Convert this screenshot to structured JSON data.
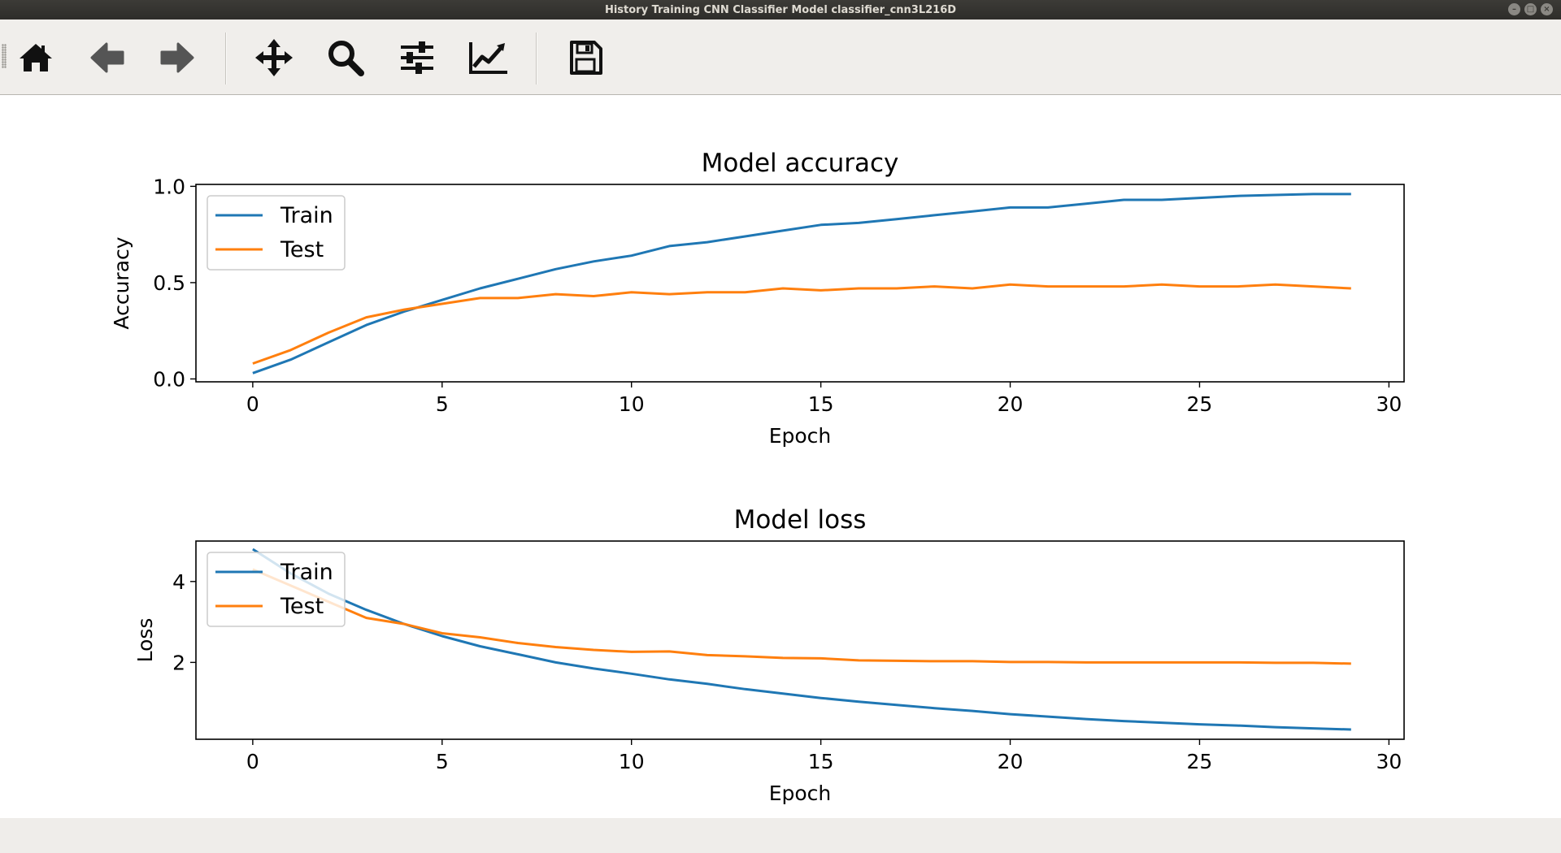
{
  "window": {
    "title": "History Training CNN Classifier Model classifier_cnn3L216D"
  },
  "toolbar": {
    "buttons": [
      {
        "name": "home-icon"
      },
      {
        "name": "back-arrow-icon"
      },
      {
        "name": "forward-arrow-icon"
      },
      {
        "name": "pan-move-icon"
      },
      {
        "name": "zoom-magnifier-icon"
      },
      {
        "name": "configure-subplots-icon"
      },
      {
        "name": "edit-axis-line-icon"
      },
      {
        "name": "save-disk-icon"
      }
    ]
  },
  "colors": {
    "train": "#1f77b4",
    "test": "#ff7f0e"
  },
  "chart_data": [
    {
      "type": "line",
      "title": "Model accuracy",
      "xlabel": "Epoch",
      "ylabel": "Accuracy",
      "xlim": [
        -1.5,
        30.4
      ],
      "ylim": [
        -0.015,
        1.01
      ],
      "xticks": [
        "0",
        "5",
        "10",
        "15",
        "20",
        "25",
        "30"
      ],
      "yticks": [
        "0.0",
        "0.5",
        "1.0"
      ],
      "legend": {
        "position": "upper-left",
        "entries": [
          "Train",
          "Test"
        ]
      },
      "grid": false,
      "x": [
        0,
        1,
        2,
        3,
        4,
        5,
        6,
        7,
        8,
        9,
        10,
        11,
        12,
        13,
        14,
        15,
        16,
        17,
        18,
        19,
        20,
        21,
        22,
        23,
        24,
        25,
        26,
        27,
        28,
        29
      ],
      "series": [
        {
          "name": "Train",
          "values": [
            0.03,
            0.1,
            0.19,
            0.28,
            0.35,
            0.41,
            0.47,
            0.52,
            0.57,
            0.61,
            0.64,
            0.69,
            0.71,
            0.74,
            0.77,
            0.8,
            0.81,
            0.83,
            0.85,
            0.87,
            0.89,
            0.89,
            0.91,
            0.93,
            0.93,
            0.94,
            0.95,
            0.955,
            0.96,
            0.96
          ]
        },
        {
          "name": "Test",
          "values": [
            0.08,
            0.15,
            0.24,
            0.32,
            0.36,
            0.39,
            0.42,
            0.42,
            0.44,
            0.43,
            0.45,
            0.44,
            0.45,
            0.45,
            0.47,
            0.46,
            0.47,
            0.47,
            0.48,
            0.47,
            0.49,
            0.48,
            0.48,
            0.48,
            0.49,
            0.48,
            0.48,
            0.49,
            0.48,
            0.47
          ]
        }
      ]
    },
    {
      "type": "line",
      "title": "Model loss",
      "xlabel": "Epoch",
      "ylabel": "Loss",
      "xlim": [
        -1.5,
        30.4
      ],
      "ylim": [
        0.1,
        5.0
      ],
      "xticks": [
        "0",
        "5",
        "10",
        "15",
        "20",
        "25",
        "30"
      ],
      "yticks": [
        "2",
        "4"
      ],
      "legend": {
        "position": "upper-left",
        "entries": [
          "Train",
          "Test"
        ]
      },
      "grid": false,
      "x": [
        0,
        1,
        2,
        3,
        4,
        5,
        6,
        7,
        8,
        9,
        10,
        11,
        12,
        13,
        14,
        15,
        16,
        17,
        18,
        19,
        20,
        21,
        22,
        23,
        24,
        25,
        26,
        27,
        28,
        29
      ],
      "series": [
        {
          "name": "Train",
          "values": [
            4.8,
            4.2,
            3.7,
            3.3,
            2.95,
            2.65,
            2.4,
            2.2,
            2.0,
            1.85,
            1.72,
            1.58,
            1.47,
            1.34,
            1.23,
            1.12,
            1.03,
            0.95,
            0.87,
            0.8,
            0.72,
            0.66,
            0.6,
            0.55,
            0.51,
            0.47,
            0.44,
            0.4,
            0.37,
            0.34
          ]
        },
        {
          "name": "Test",
          "values": [
            4.3,
            3.9,
            3.5,
            3.1,
            2.95,
            2.72,
            2.62,
            2.48,
            2.38,
            2.31,
            2.26,
            2.27,
            2.18,
            2.15,
            2.11,
            2.1,
            2.05,
            2.04,
            2.03,
            2.03,
            2.01,
            2.01,
            2.0,
            2.0,
            2.0,
            2.0,
            2.0,
            1.99,
            1.99,
            1.97
          ]
        }
      ]
    }
  ]
}
